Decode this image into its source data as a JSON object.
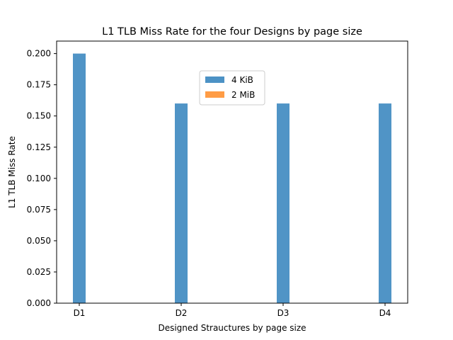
{
  "chart_data": {
    "type": "bar",
    "title": "L1 TLB Miss Rate for the four Designs by page size",
    "xlabel": "Designed Strauctures by page size",
    "ylabel": "L1 TLB Miss Rate",
    "categories": [
      "D1",
      "D2",
      "D3",
      "D4"
    ],
    "series": [
      {
        "name": "4 KiB",
        "values": [
          0.2,
          0.16,
          0.16,
          0.16
        ],
        "color": "#4c92c5"
      },
      {
        "name": "2 MiB",
        "values": [
          0,
          0,
          0,
          0
        ],
        "color": "#ff9c45"
      }
    ],
    "ylim": [
      0,
      0.21
    ],
    "yticks": [
      "0.000",
      "0.025",
      "0.050",
      "0.075",
      "0.100",
      "0.125",
      "0.150",
      "0.175",
      "0.200"
    ],
    "grid": false,
    "legend_position": "upper-center"
  }
}
